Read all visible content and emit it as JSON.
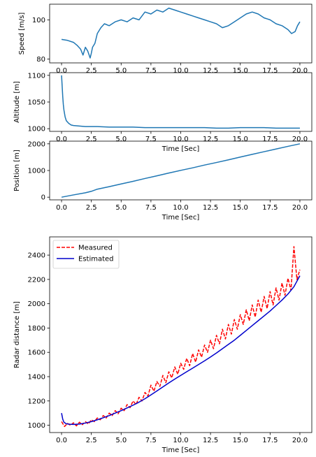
{
  "chart_data": [
    {
      "type": "line",
      "id": "speed",
      "xlabel": "",
      "ylabel": "Speed [m/s]",
      "xlim": [
        -1,
        21
      ],
      "ylim": [
        78,
        108
      ],
      "xticks": [
        0,
        2.5,
        5,
        7.5,
        10,
        12.5,
        15,
        17.5,
        20
      ],
      "xticklabels": [
        "0.0",
        "2.5",
        "5.0",
        "7.5",
        "10.0",
        "12.5",
        "15.0",
        "17.5",
        "20.0"
      ],
      "yticks": [
        80,
        100
      ],
      "yticklabels": [
        "80",
        "100"
      ],
      "color": "#1f77b4",
      "series": [
        {
          "x": [
            0,
            0.5,
            1,
            1.3,
            1.6,
            1.8,
            2.0,
            2.2,
            2.4,
            2.5,
            2.6,
            2.8,
            3.0,
            3.3,
            3.6,
            4.0,
            4.5,
            5.0,
            5.5,
            6.0,
            6.5,
            7.0,
            7.5,
            8.0,
            8.5,
            9.0,
            9.5,
            10.0,
            10.5,
            11.0,
            11.5,
            12.0,
            12.5,
            13.0,
            13.5,
            14.0,
            14.5,
            15.0,
            15.5,
            16.0,
            16.5,
            17.0,
            17.5,
            18.0,
            18.5,
            19.0,
            19.3,
            19.6,
            19.8,
            20.0
          ],
          "y": [
            90,
            89.5,
            88.5,
            87,
            85,
            82,
            86,
            84,
            80.5,
            83,
            86,
            88,
            93,
            96,
            98,
            97,
            99,
            100,
            99,
            101,
            100,
            104,
            103,
            105,
            104,
            106,
            105,
            104,
            103,
            102,
            101,
            100,
            99,
            98,
            96,
            97,
            99,
            101,
            103,
            104,
            103,
            101,
            100,
            98,
            97,
            95,
            93,
            94,
            97,
            99
          ]
        }
      ]
    },
    {
      "type": "line",
      "id": "altitude",
      "xlabel": "Time [Sec]",
      "ylabel": "Altitude [m]",
      "xlim": [
        -1,
        21
      ],
      "ylim": [
        995,
        1105
      ],
      "xticks": [
        0,
        2.5,
        5,
        7.5,
        10,
        12.5,
        15,
        17.5,
        20
      ],
      "xticklabels": [
        "0.0",
        "2.5",
        "5.0",
        "7.5",
        "10.0",
        "12.5",
        "15.0",
        "17.5",
        "20.0"
      ],
      "yticks": [
        1000,
        1050,
        1100
      ],
      "yticklabels": [
        "1000",
        "1050",
        "1100"
      ],
      "color": "#1f77b4",
      "series": [
        {
          "x": [
            0,
            0.05,
            0.1,
            0.15,
            0.2,
            0.3,
            0.4,
            0.6,
            0.8,
            1.0,
            1.5,
            2.0,
            3.0,
            4.0,
            5.0,
            6.0,
            7.0,
            8.0,
            9.0,
            10.0,
            11.0,
            12.0,
            13.0,
            14.0,
            15.0,
            16.0,
            17.0,
            18.0,
            19.0,
            20.0
          ],
          "y": [
            1100,
            1080,
            1060,
            1045,
            1035,
            1022,
            1015,
            1010,
            1007,
            1006,
            1005,
            1004,
            1004,
            1003,
            1003,
            1003,
            1002,
            1002,
            1002,
            1002,
            1002,
            1002,
            1001,
            1001,
            1002,
            1002,
            1002,
            1001,
            1001,
            1001
          ]
        }
      ]
    },
    {
      "type": "line",
      "id": "position",
      "xlabel": "Time [Sec]",
      "ylabel": "Position [m]",
      "xlim": [
        -1,
        21
      ],
      "ylim": [
        -100,
        2100
      ],
      "xticks": [
        0,
        2.5,
        5,
        7.5,
        10,
        12.5,
        15,
        17.5,
        20
      ],
      "xticklabels": [
        "0.0",
        "2.5",
        "5.0",
        "7.5",
        "10.0",
        "12.5",
        "15.0",
        "17.5",
        "20.0"
      ],
      "yticks": [
        0,
        1000,
        2000
      ],
      "yticklabels": [
        "0",
        "1000",
        "2000"
      ],
      "color": "#1f77b4",
      "series": [
        {
          "x": [
            0,
            1,
            2,
            2.5,
            3,
            4,
            5,
            6,
            7,
            8,
            9,
            10,
            11,
            12,
            13,
            14,
            15,
            16,
            17,
            18,
            19,
            20
          ],
          "y": [
            0,
            85,
            165,
            220,
            300,
            395,
            495,
            595,
            700,
            800,
            905,
            1005,
            1100,
            1205,
            1300,
            1400,
            1505,
            1605,
            1705,
            1805,
            1905,
            2000
          ]
        }
      ]
    },
    {
      "type": "line",
      "id": "radar",
      "xlabel": "Time [Sec]",
      "ylabel": "Radar distance [m]",
      "xlim": [
        -1,
        21
      ],
      "ylim": [
        940,
        2550
      ],
      "xticks": [
        0,
        2.5,
        5,
        7.5,
        10,
        12.5,
        15,
        17.5,
        20
      ],
      "xticklabels": [
        "0.0",
        "2.5",
        "5.0",
        "7.5",
        "10.0",
        "12.5",
        "15.0",
        "17.5",
        "20.0"
      ],
      "yticks": [
        1000,
        1200,
        1400,
        1600,
        1800,
        2000,
        2200,
        2400
      ],
      "yticklabels": [
        "1000",
        "1200",
        "1400",
        "1600",
        "1800",
        "2000",
        "2200",
        "2400"
      ],
      "legend": "upper left",
      "series": [
        {
          "name": "Measured",
          "color": "#ff0000",
          "style": "dashed",
          "x": [
            0,
            0.25,
            0.5,
            0.75,
            1,
            1.25,
            1.5,
            1.75,
            2,
            2.25,
            2.5,
            2.75,
            3,
            3.25,
            3.5,
            3.75,
            4,
            4.25,
            4.5,
            4.75,
            5,
            5.25,
            5.5,
            5.75,
            6,
            6.25,
            6.5,
            6.75,
            7,
            7.25,
            7.5,
            7.75,
            8,
            8.25,
            8.5,
            8.75,
            9,
            9.25,
            9.5,
            9.75,
            10,
            10.25,
            10.5,
            10.75,
            11,
            11.25,
            11.5,
            11.75,
            12,
            12.25,
            12.5,
            12.75,
            13,
            13.25,
            13.5,
            13.75,
            14,
            14.25,
            14.5,
            14.75,
            15,
            15.25,
            15.5,
            15.75,
            16,
            16.25,
            16.5,
            16.75,
            17,
            17.25,
            17.5,
            17.75,
            18,
            18.25,
            18.5,
            18.75,
            19,
            19.25,
            19.5,
            19.75,
            20
          ],
          "y": [
            1030,
            990,
            1015,
            1000,
            1020,
            995,
            1025,
            1005,
            1030,
            1010,
            1045,
            1030,
            1060,
            1045,
            1080,
            1060,
            1100,
            1080,
            1120,
            1095,
            1140,
            1120,
            1170,
            1145,
            1200,
            1170,
            1230,
            1200,
            1270,
            1240,
            1330,
            1280,
            1360,
            1320,
            1410,
            1350,
            1440,
            1390,
            1480,
            1420,
            1510,
            1460,
            1550,
            1490,
            1590,
            1520,
            1620,
            1560,
            1660,
            1600,
            1700,
            1630,
            1740,
            1670,
            1790,
            1710,
            1830,
            1750,
            1870,
            1790,
            1910,
            1830,
            1950,
            1860,
            1990,
            1890,
            2030,
            1930,
            2060,
            1960,
            2100,
            1990,
            2130,
            2030,
            2170,
            2070,
            2210,
            2110,
            2470,
            2200,
            2280
          ]
        },
        {
          "name": "Estimated",
          "color": "#0000cc",
          "style": "solid",
          "x": [
            0,
            0.1,
            0.2,
            0.4,
            0.7,
            1,
            1.5,
            2,
            2.5,
            3,
            3.5,
            4,
            4.5,
            5,
            5.5,
            6,
            6.5,
            7,
            7.5,
            8,
            8.5,
            9,
            9.5,
            10,
            10.5,
            11,
            11.5,
            12,
            12.5,
            13,
            13.5,
            14,
            14.5,
            15,
            15.5,
            16,
            16.5,
            17,
            17.5,
            18,
            18.5,
            19,
            19.5,
            20
          ],
          "y": [
            1100,
            1050,
            1025,
            1012,
            1008,
            1007,
            1010,
            1018,
            1030,
            1045,
            1062,
            1080,
            1100,
            1120,
            1142,
            1165,
            1190,
            1218,
            1250,
            1282,
            1315,
            1348,
            1380,
            1410,
            1440,
            1470,
            1500,
            1530,
            1562,
            1595,
            1630,
            1665,
            1700,
            1740,
            1780,
            1820,
            1860,
            1900,
            1940,
            1985,
            2030,
            2080,
            2140,
            2230
          ]
        }
      ]
    }
  ]
}
